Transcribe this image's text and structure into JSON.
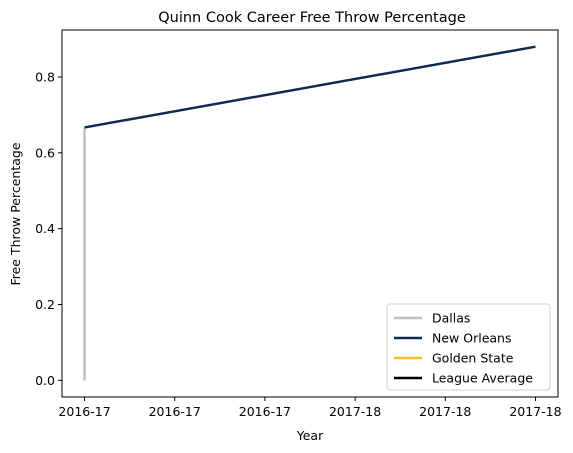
{
  "chart_data": {
    "type": "line",
    "title": "Quinn Cook Career Free Throw Percentage",
    "xlabel": "Year",
    "ylabel": "Free Throw Percentage",
    "x_ticks": [
      "2016-17",
      "2016-17",
      "2016-17",
      "2017-18",
      "2017-18",
      "2017-18"
    ],
    "x_range": [
      -0.05,
      1.05
    ],
    "ylim": [
      -0.044,
      0.924
    ],
    "y_ticks": [
      0.0,
      0.2,
      0.4,
      0.6,
      0.8
    ],
    "y_tick_labels": [
      "0.0",
      "0.2",
      "0.4",
      "0.6",
      "0.8"
    ],
    "grid": false,
    "legend_position": "lower-right",
    "series": [
      {
        "name": "Dallas",
        "color": "#bfbfbf",
        "points": [
          [
            0.0,
            0.0
          ],
          [
            0.0,
            0.667
          ]
        ]
      },
      {
        "name": "New Orleans",
        "color": "#0c2a52",
        "points": [
          [
            0.0,
            0.667
          ],
          [
            1.0,
            0.88
          ]
        ]
      },
      {
        "name": "Golden State",
        "color": "#fdb927",
        "points": []
      },
      {
        "name": "League Average",
        "color": "#000000",
        "points": []
      }
    ]
  }
}
